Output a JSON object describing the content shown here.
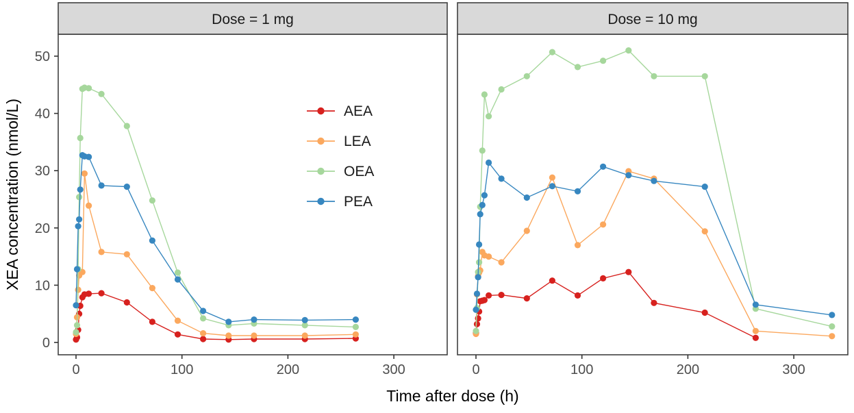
{
  "figure": {
    "x_axis_title": "Time after dose (h)",
    "y_axis_title": "XEA concentration (nmol/L)",
    "x_ticks": [
      0,
      100,
      200,
      300
    ],
    "y_ticks": [
      0,
      10,
      20,
      30,
      40,
      50
    ]
  },
  "legend": {
    "items": [
      {
        "label": "AEA",
        "color": "#d7211e"
      },
      {
        "label": "LEA",
        "color": "#fba85e"
      },
      {
        "label": "OEA",
        "color": "#a6d79c"
      },
      {
        "label": "PEA",
        "color": "#3787c0"
      }
    ]
  },
  "chart_data": {
    "type": "line",
    "title": "",
    "xlabel": "Time after dose (h)",
    "ylabel": "XEA concentration (nmol/L)",
    "x_unit": "hours",
    "y_unit": "nmol/L",
    "xlim": [
      -17,
      351
    ],
    "ylim": [
      -2,
      54
    ],
    "grid": false,
    "markers": true,
    "legend_position": "inside-first-facet",
    "facets": [
      {
        "title": "Dose = 1 mg",
        "x": [
          0,
          1,
          2,
          3,
          4,
          6,
          8,
          12,
          24,
          48,
          72,
          96,
          120,
          144,
          168,
          216,
          264
        ],
        "series": [
          {
            "name": "AEA",
            "color": "#d7211e",
            "values": [
              0.5,
              0.9,
              2.2,
              5.0,
              6.4,
              7.9,
              8.4,
              8.5,
              8.6,
              7.0,
              3.6,
              1.4,
              0.6,
              0.5,
              0.6,
              0.6,
              0.7
            ]
          },
          {
            "name": "LEA",
            "color": "#fba85e",
            "values": [
              1.5,
              4.4,
              9.2,
              11.7,
              12.3,
              12.3,
              29.5,
              23.9,
              15.8,
              15.4,
              9.5,
              3.8,
              1.6,
              1.2,
              1.2,
              1.2,
              1.4
            ]
          },
          {
            "name": "OEA",
            "color": "#a6d79c",
            "values": [
              1.8,
              3.0,
              12.8,
              25.4,
              35.7,
              44.3,
              44.5,
              44.4,
              43.4,
              37.8,
              24.8,
              12.2,
              4.2,
              3.0,
              3.3,
              3.0,
              2.7
            ]
          },
          {
            "name": "PEA",
            "color": "#3787c0",
            "values": [
              6.5,
              12.8,
              20.3,
              21.5,
              26.7,
              32.7,
              32.5,
              32.4,
              27.4,
              27.2,
              17.8,
              11.0,
              5.5,
              3.6,
              4.0,
              3.9,
              4.0
            ]
          }
        ]
      },
      {
        "title": "Dose = 10 mg",
        "x": [
          0,
          1,
          2,
          3,
          4,
          6,
          8,
          12,
          24,
          48,
          72,
          96,
          120,
          144,
          168,
          216,
          264,
          336
        ],
        "series": [
          {
            "name": "AEA",
            "color": "#d7211e",
            "values": [
              1.6,
              3.2,
              4.2,
              5.4,
              7.2,
              7.3,
              7.4,
              8.2,
              8.3,
              7.7,
              10.8,
              8.2,
              11.2,
              12.3,
              6.9,
              5.2,
              0.8,
              null
            ]
          },
          {
            "name": "LEA",
            "color": "#fba85e",
            "values": [
              1.5,
              8.4,
              11.6,
              12.2,
              12.6,
              15.8,
              15.2,
              15.0,
              14.0,
              19.5,
              28.8,
              17.0,
              20.6,
              29.9,
              28.6,
              19.4,
              2.0,
              1.1
            ]
          },
          {
            "name": "OEA",
            "color": "#a6d79c",
            "values": [
              2.0,
              6.0,
              12.3,
              14.0,
              23.7,
              33.5,
              43.3,
              39.5,
              44.2,
              46.5,
              50.7,
              48.1,
              49.2,
              51.0,
              46.5,
              46.5,
              5.9,
              2.8
            ]
          },
          {
            "name": "PEA",
            "color": "#3787c0",
            "values": [
              5.7,
              8.5,
              11.4,
              17.1,
              22.4,
              24.0,
              25.7,
              31.4,
              28.6,
              25.3,
              27.3,
              26.4,
              30.7,
              29.2,
              28.2,
              27.2,
              6.6,
              4.8
            ]
          }
        ]
      }
    ]
  }
}
